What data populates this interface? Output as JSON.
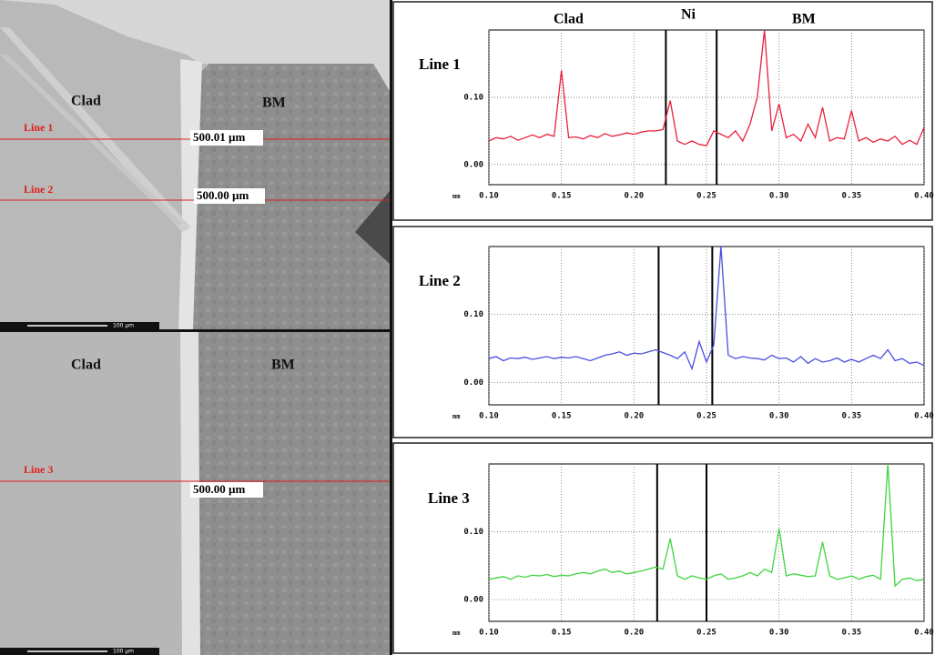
{
  "micrographs": [
    {
      "regions": [
        "Clad",
        "BM"
      ],
      "lines": [
        {
          "name": "Line 1",
          "length": "500.01 µm"
        },
        {
          "name": "Line 2",
          "length": "500.00 µm"
        }
      ],
      "scale": "100 µm"
    },
    {
      "regions": [
        "Clad",
        "BM"
      ],
      "lines": [
        {
          "name": "Line 3",
          "length": "500.00 µm"
        }
      ],
      "scale": "100 µm"
    }
  ],
  "chart_data": [
    {
      "type": "line",
      "title": "Line 1",
      "annotations": [
        "Clad",
        "Ni",
        "BM"
      ],
      "x_unit": "mm",
      "x": [
        0.1,
        0.105,
        0.11,
        0.115,
        0.12,
        0.125,
        0.13,
        0.135,
        0.14,
        0.145,
        0.15,
        0.155,
        0.16,
        0.165,
        0.17,
        0.175,
        0.18,
        0.185,
        0.19,
        0.195,
        0.2,
        0.205,
        0.21,
        0.215,
        0.22,
        0.225,
        0.23,
        0.235,
        0.24,
        0.245,
        0.25,
        0.255,
        0.26,
        0.265,
        0.27,
        0.275,
        0.28,
        0.285,
        0.29,
        0.295,
        0.3,
        0.305,
        0.31,
        0.315,
        0.32,
        0.325,
        0.33,
        0.335,
        0.34,
        0.345,
        0.35,
        0.355,
        0.36,
        0.365,
        0.37,
        0.375,
        0.38,
        0.385,
        0.39,
        0.395,
        0.4
      ],
      "series": [
        {
          "color": "#e8203c",
          "values": [
            0.035,
            0.04,
            0.038,
            0.042,
            0.036,
            0.04,
            0.044,
            0.04,
            0.045,
            0.042,
            0.14,
            0.04,
            0.041,
            0.038,
            0.043,
            0.04,
            0.046,
            0.042,
            0.044,
            0.047,
            0.045,
            0.048,
            0.05,
            0.05,
            0.052,
            0.095,
            0.035,
            0.03,
            0.035,
            0.03,
            0.028,
            0.05,
            0.045,
            0.04,
            0.05,
            0.035,
            0.06,
            0.1,
            0.2,
            0.05,
            0.09,
            0.04,
            0.045,
            0.035,
            0.06,
            0.04,
            0.085,
            0.035,
            0.04,
            0.038,
            0.08,
            0.035,
            0.04,
            0.033,
            0.038,
            0.035,
            0.042,
            0.03,
            0.036,
            0.03,
            0.055
          ]
        }
      ],
      "boundaries": [
        0.222,
        0.257
      ],
      "xlim": [
        0.1,
        0.4
      ],
      "ylim": [
        -0.03,
        0.2
      ],
      "xticks": [
        {
          "value": 0.1,
          "label": "0.10"
        },
        {
          "value": 0.15,
          "label": "0.15"
        },
        {
          "value": 0.2,
          "label": "0.20"
        },
        {
          "value": 0.25,
          "label": "0.25"
        },
        {
          "value": 0.3,
          "label": "0.30"
        },
        {
          "value": 0.35,
          "label": "0.35"
        },
        {
          "value": 0.4,
          "label": "0.40"
        }
      ],
      "yticks": [
        {
          "value": 0,
          "label": "0.00"
        },
        {
          "value": 0.1,
          "label": "0.10"
        }
      ],
      "grid": true
    },
    {
      "type": "line",
      "title": "Line 2",
      "x_unit": "mm",
      "x": [
        0.1,
        0.105,
        0.11,
        0.115,
        0.12,
        0.125,
        0.13,
        0.135,
        0.14,
        0.145,
        0.15,
        0.155,
        0.16,
        0.165,
        0.17,
        0.175,
        0.18,
        0.185,
        0.19,
        0.195,
        0.2,
        0.205,
        0.21,
        0.215,
        0.22,
        0.225,
        0.23,
        0.235,
        0.24,
        0.245,
        0.25,
        0.255,
        0.26,
        0.265,
        0.27,
        0.275,
        0.28,
        0.285,
        0.29,
        0.295,
        0.3,
        0.305,
        0.31,
        0.315,
        0.32,
        0.325,
        0.33,
        0.335,
        0.34,
        0.345,
        0.35,
        0.355,
        0.36,
        0.365,
        0.37,
        0.375,
        0.38,
        0.385,
        0.39,
        0.395,
        0.4
      ],
      "series": [
        {
          "color": "#4b4fe0",
          "values": [
            0.035,
            0.038,
            0.032,
            0.036,
            0.035,
            0.037,
            0.034,
            0.036,
            0.038,
            0.035,
            0.037,
            0.036,
            0.038,
            0.035,
            0.032,
            0.036,
            0.04,
            0.042,
            0.045,
            0.04,
            0.043,
            0.042,
            0.045,
            0.048,
            0.044,
            0.04,
            0.035,
            0.045,
            0.02,
            0.06,
            0.03,
            0.055,
            0.2,
            0.04,
            0.035,
            0.038,
            0.036,
            0.035,
            0.033,
            0.04,
            0.035,
            0.036,
            0.03,
            0.038,
            0.028,
            0.035,
            0.03,
            0.032,
            0.036,
            0.03,
            0.034,
            0.03,
            0.035,
            0.04,
            0.035,
            0.048,
            0.032,
            0.035,
            0.028,
            0.03,
            0.025
          ]
        }
      ],
      "boundaries": [
        0.217,
        0.254
      ],
      "xlim": [
        0.1,
        0.4
      ],
      "ylim": [
        -0.033,
        0.2
      ],
      "xticks": [
        {
          "value": 0.1,
          "label": "0.10"
        },
        {
          "value": 0.15,
          "label": "0.15"
        },
        {
          "value": 0.2,
          "label": "0.20"
        },
        {
          "value": 0.25,
          "label": "0.25"
        },
        {
          "value": 0.3,
          "label": "0.30"
        },
        {
          "value": 0.35,
          "label": "0.35"
        },
        {
          "value": 0.4,
          "label": "0.40"
        }
      ],
      "yticks": [
        {
          "value": 0,
          "label": "0.00"
        },
        {
          "value": 0.1,
          "label": "0.10"
        }
      ],
      "grid": true
    },
    {
      "type": "line",
      "title": "Line 3",
      "x_unit": "mm",
      "x": [
        0.1,
        0.105,
        0.11,
        0.115,
        0.12,
        0.125,
        0.13,
        0.135,
        0.14,
        0.145,
        0.15,
        0.155,
        0.16,
        0.165,
        0.17,
        0.175,
        0.18,
        0.185,
        0.19,
        0.195,
        0.2,
        0.205,
        0.21,
        0.215,
        0.22,
        0.225,
        0.23,
        0.235,
        0.24,
        0.245,
        0.25,
        0.255,
        0.26,
        0.265,
        0.27,
        0.275,
        0.28,
        0.285,
        0.29,
        0.295,
        0.3,
        0.305,
        0.31,
        0.315,
        0.32,
        0.325,
        0.33,
        0.335,
        0.34,
        0.345,
        0.35,
        0.355,
        0.36,
        0.365,
        0.37,
        0.375,
        0.38,
        0.385,
        0.39,
        0.395,
        0.4
      ],
      "series": [
        {
          "color": "#3ed43e",
          "values": [
            0.03,
            0.032,
            0.034,
            0.03,
            0.035,
            0.033,
            0.036,
            0.035,
            0.037,
            0.034,
            0.036,
            0.035,
            0.038,
            0.04,
            0.038,
            0.042,
            0.045,
            0.04,
            0.042,
            0.038,
            0.04,
            0.042,
            0.045,
            0.048,
            0.045,
            0.09,
            0.035,
            0.03,
            0.035,
            0.032,
            0.03,
            0.035,
            0.038,
            0.03,
            0.032,
            0.035,
            0.04,
            0.035,
            0.045,
            0.04,
            0.105,
            0.035,
            0.038,
            0.036,
            0.034,
            0.035,
            0.085,
            0.035,
            0.03,
            0.032,
            0.035,
            0.03,
            0.034,
            0.036,
            0.03,
            0.2,
            0.02,
            0.03,
            0.032,
            0.028,
            0.03
          ]
        }
      ],
      "boundaries": [
        0.216,
        0.25
      ],
      "xlim": [
        0.1,
        0.4
      ],
      "ylim": [
        -0.032,
        0.2
      ],
      "xticks": [
        {
          "value": 0.1,
          "label": "0.10"
        },
        {
          "value": 0.15,
          "label": "0.15"
        },
        {
          "value": 0.2,
          "label": "0.20"
        },
        {
          "value": 0.25,
          "label": "0.25"
        },
        {
          "value": 0.3,
          "label": "0.30"
        },
        {
          "value": 0.35,
          "label": "0.35"
        },
        {
          "value": 0.4,
          "label": "0.40"
        }
      ],
      "yticks": [
        {
          "value": 0,
          "label": "0.00"
        },
        {
          "value": 0.1,
          "label": "0.10"
        }
      ],
      "grid": true
    }
  ]
}
